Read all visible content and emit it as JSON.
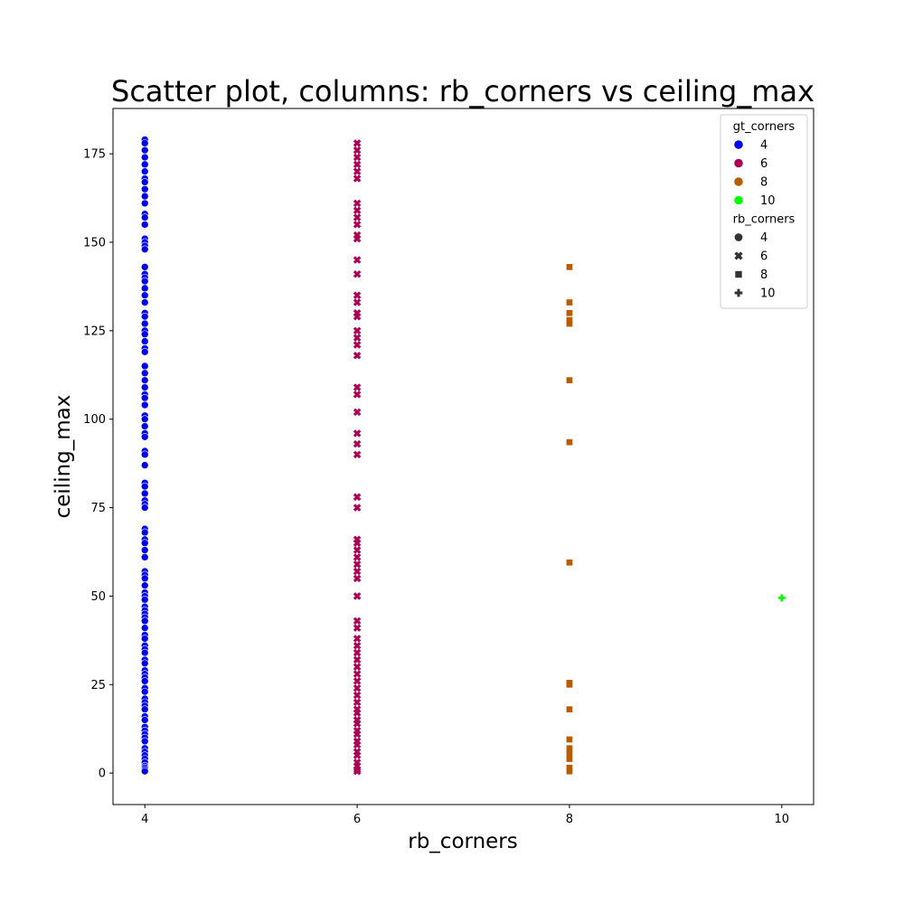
{
  "chart_data": {
    "type": "scatter",
    "title": "Scatter plot, columns: rb_corners vs ceiling_max",
    "xlabel": "rb_corners",
    "ylabel": "ceiling_max",
    "xlim": [
      3.7,
      10.3
    ],
    "ylim": [
      -8.9,
      187.8
    ],
    "x_ticks": [
      4,
      6,
      8,
      10
    ],
    "y_ticks": [
      0,
      25,
      50,
      75,
      100,
      125,
      150,
      175
    ],
    "grid": false,
    "legend_position": "top-right",
    "legend": {
      "hue_title": "gt_corners",
      "hue_entries": [
        {
          "label": "4",
          "color": "#0000ee"
        },
        {
          "label": "6",
          "color": "#aa0055"
        },
        {
          "label": "8",
          "color": "#b85c00"
        },
        {
          "label": "10",
          "color": "#00ff00"
        }
      ],
      "style_title": "rb_corners",
      "style_entries": [
        {
          "label": "4",
          "marker": "circle"
        },
        {
          "label": "6",
          "marker": "x"
        },
        {
          "label": "8",
          "marker": "square"
        },
        {
          "label": "10",
          "marker": "plus"
        }
      ]
    },
    "series": [
      {
        "name": "4",
        "x": 4,
        "marker": "circle",
        "color": "#0000ee",
        "y": [
          179,
          178,
          176,
          174,
          172,
          170,
          168,
          167,
          165,
          163,
          161,
          158,
          157,
          155,
          151,
          150,
          149,
          148,
          143,
          141,
          140,
          139,
          137,
          135,
          133,
          130,
          129,
          127,
          125,
          124,
          122,
          120,
          119,
          115,
          113,
          111,
          109,
          107,
          106,
          104,
          101,
          100,
          98,
          96,
          95,
          91,
          90,
          87,
          82,
          81,
          79,
          77,
          76,
          75,
          69,
          68,
          66,
          65,
          63,
          61,
          57,
          56,
          55,
          53,
          51,
          50,
          49,
          47,
          46,
          45,
          44,
          43,
          41,
          39,
          38,
          36,
          35,
          34,
          32,
          31,
          29,
          28,
          27,
          26,
          24,
          23,
          21,
          20,
          19,
          18,
          16,
          15,
          13,
          12,
          11,
          10,
          9,
          7,
          6,
          5,
          4,
          3,
          2,
          1.5,
          1,
          0.5
        ]
      },
      {
        "name": "6",
        "x": 6,
        "marker": "x",
        "color": "#aa0055",
        "y": [
          178,
          176,
          174,
          172,
          170,
          168,
          161,
          159,
          157,
          155,
          152,
          151,
          145,
          141,
          135,
          133,
          130,
          129,
          125,
          123,
          121,
          118,
          109,
          107,
          102,
          96,
          93,
          90,
          78,
          75,
          66,
          65,
          63,
          61,
          59,
          57,
          55,
          50,
          43,
          41,
          38,
          36,
          34,
          32,
          30,
          28,
          26,
          24,
          22,
          20,
          18,
          17,
          15,
          14,
          12,
          11,
          9,
          8,
          6,
          5,
          3,
          2,
          1,
          0.5
        ]
      },
      {
        "name": "8",
        "x": 8,
        "marker": "square",
        "color": "#b85c00",
        "y": [
          143,
          133,
          130,
          128,
          127,
          111,
          93.5,
          59.5,
          25.5,
          25,
          18,
          9.5,
          7,
          5.5,
          4,
          1.5,
          0.5
        ]
      },
      {
        "name": "10",
        "x": 10,
        "marker": "plus",
        "color": "#00ff00",
        "y": [
          49.5
        ]
      }
    ]
  }
}
